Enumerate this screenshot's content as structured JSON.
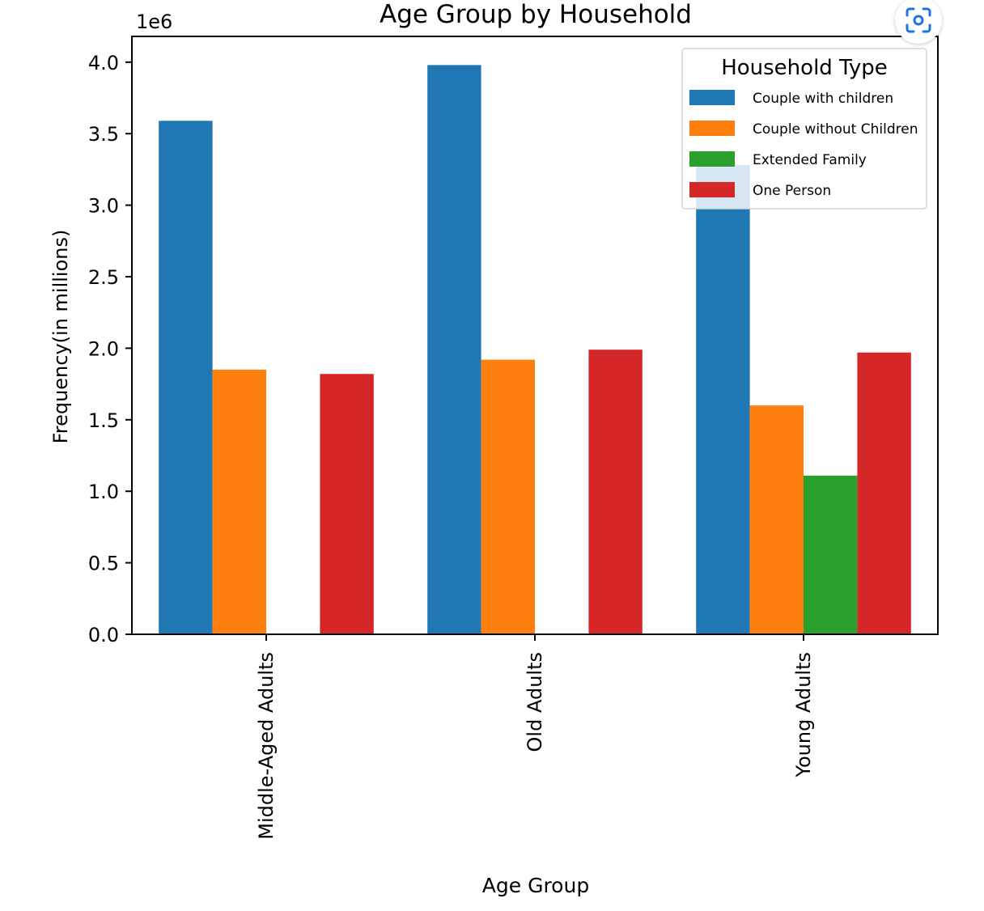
{
  "chart_data": {
    "type": "bar",
    "title": "Age Group by Household",
    "xlabel": "Age Group",
    "ylabel": "Frequency(in millions)",
    "y_offset_label": "1e6",
    "categories": [
      "Middle-Aged Adults",
      "Old Adults",
      "Young Adults"
    ],
    "series": [
      {
        "name": "Couple with children",
        "color": "#1f77b4",
        "values": [
          3590000,
          3980000,
          3280000
        ]
      },
      {
        "name": "Couple without Children",
        "color": "#ff7f0e",
        "values": [
          1850000,
          1920000,
          1600000
        ]
      },
      {
        "name": "Extended Family",
        "color": "#2ca02c",
        "values": [
          0,
          0,
          1110000
        ]
      },
      {
        "name": "One Person",
        "color": "#d62728",
        "values": [
          1820000,
          1990000,
          1970000
        ]
      }
    ],
    "yticks": [
      "0.0",
      "0.5",
      "1.0",
      "1.5",
      "2.0",
      "2.5",
      "3.0",
      "3.5",
      "4.0"
    ],
    "ylim": [
      0,
      4180000
    ],
    "grid": false,
    "legend": {
      "title": "Household Type",
      "position": "top-right"
    }
  },
  "overlay": {
    "lens_icon": "visual-search-icon"
  }
}
